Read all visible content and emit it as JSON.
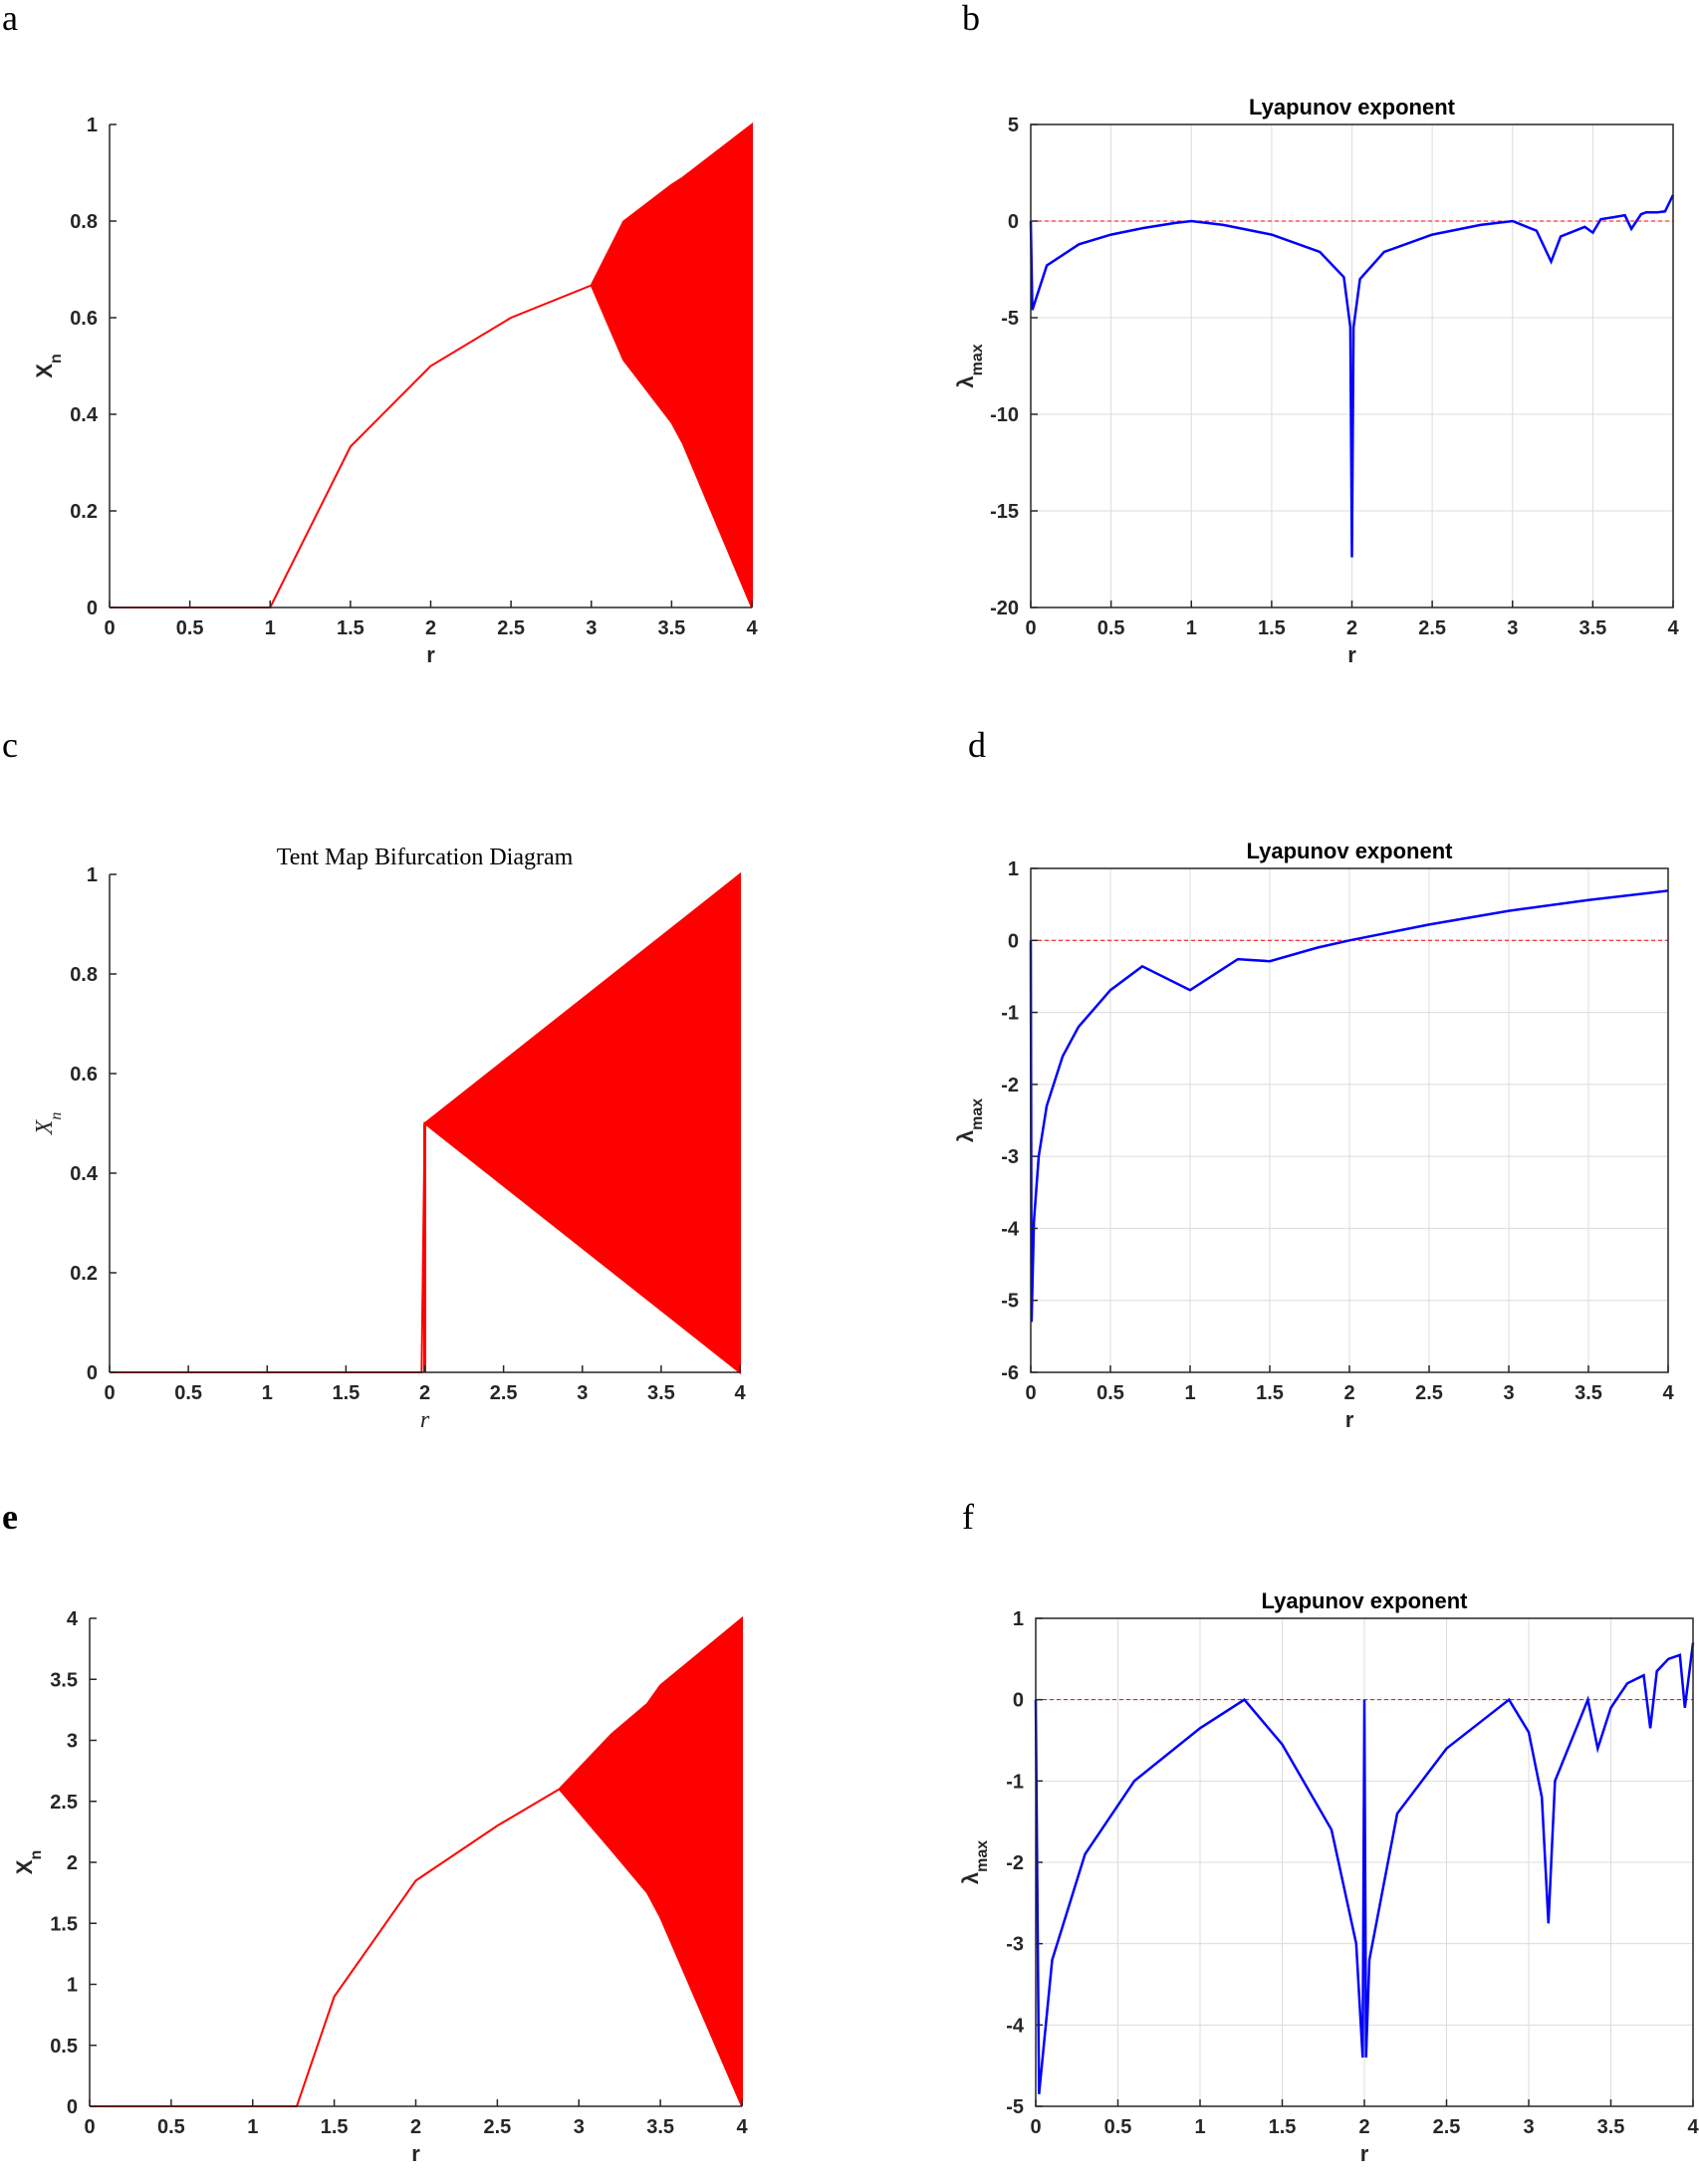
{
  "chart_data": [
    {
      "panel": "a",
      "type": "scatter",
      "kind": "bifurcation",
      "map": "logistic",
      "title": "",
      "xlabel": "r",
      "ylabel": "X",
      "ylabel_sub": "n",
      "xlim": [
        0,
        4
      ],
      "ylim": [
        0,
        1
      ],
      "xticks": [
        0,
        0.5,
        1,
        1.5,
        2,
        2.5,
        3,
        3.5,
        4
      ],
      "yticks": [
        0,
        0.2,
        0.4,
        0.6,
        0.8,
        1
      ],
      "xtick_labels": [
        "0",
        "0.5",
        "1",
        "1.5",
        "2",
        "2.5",
        "3",
        "3.5",
        "4"
      ],
      "ytick_labels": [
        "0",
        "0.2",
        "0.4",
        "0.6",
        "0.8",
        "1"
      ],
      "grid": false,
      "color": "#ff0000",
      "x": [
        0,
        0.5,
        1,
        1.5,
        2,
        2.5,
        3,
        3.2,
        3.5,
        3.57,
        4
      ],
      "y": [
        0,
        0,
        0,
        0.333,
        0.5,
        0.6,
        0.667,
        0.513,
        0.383,
        0.34,
        0
      ],
      "y_upper": [
        0,
        0,
        0,
        0.333,
        0.5,
        0.6,
        0.667,
        0.799,
        0.875,
        0.89,
        1
      ]
    },
    {
      "panel": "b",
      "type": "line",
      "title": "Lyapunov exponent",
      "xlabel": "r",
      "ylabel": "λ",
      "ylabel_sub": "max",
      "xlim": [
        0,
        4
      ],
      "ylim": [
        -20,
        5
      ],
      "xticks": [
        0,
        0.5,
        1,
        1.5,
        2,
        2.5,
        3,
        3.5,
        4
      ],
      "yticks": [
        -20,
        -15,
        -10,
        -5,
        0,
        5
      ],
      "xtick_labels": [
        "0",
        "0.5",
        "1",
        "1.5",
        "2",
        "2.5",
        "3",
        "3.5",
        "4"
      ],
      "ytick_labels": [
        "-20",
        "-15",
        "-10",
        "-5",
        "0",
        "5"
      ],
      "grid": true,
      "color": "#0000ff",
      "reference_line": 0,
      "x": [
        0,
        0.01,
        0.1,
        0.3,
        0.5,
        0.7,
        0.9,
        1.0,
        1.2,
        1.5,
        1.8,
        1.95,
        1.99,
        2.0,
        2.01,
        2.05,
        2.2,
        2.5,
        2.8,
        3.0,
        3.15,
        3.24,
        3.3,
        3.45,
        3.5,
        3.55,
        3.63,
        3.7,
        3.74,
        3.8,
        3.83,
        3.9,
        3.95,
        4.0
      ],
      "y": [
        0,
        -4.6,
        -2.3,
        -1.2,
        -0.7,
        -0.36,
        -0.1,
        0,
        -0.2,
        -0.7,
        -1.6,
        -2.9,
        -5.5,
        -17.4,
        -5.5,
        -3.0,
        -1.6,
        -0.7,
        -0.2,
        0,
        -0.5,
        -2.1,
        -0.8,
        -0.3,
        -0.6,
        0.1,
        0.2,
        0.3,
        -0.4,
        0.35,
        0.45,
        0.45,
        0.5,
        1.35
      ]
    },
    {
      "panel": "c",
      "type": "scatter",
      "kind": "bifurcation",
      "map": "tent",
      "title": "Tent Map Bifurcation Diagram",
      "xlabel": "r",
      "ylabel": "X",
      "ylabel_sub": "n",
      "xlim": [
        0,
        4
      ],
      "ylim": [
        0,
        1
      ],
      "xticks": [
        0,
        0.5,
        1,
        1.5,
        2,
        2.5,
        3,
        3.5,
        4
      ],
      "yticks": [
        0,
        0.2,
        0.4,
        0.6,
        0.8,
        1
      ],
      "xtick_labels": [
        "0",
        "0.5",
        "1",
        "1.5",
        "2",
        "2.5",
        "3",
        "3.5",
        "4"
      ],
      "ytick_labels": [
        "0",
        "0.2",
        "0.4",
        "0.6",
        "0.8",
        "1"
      ],
      "grid": false,
      "color": "#ff0000",
      "x": [
        0,
        1,
        1.98,
        2,
        2.5,
        3,
        3.5,
        4
      ],
      "y": [
        0,
        0,
        0,
        0.5,
        0.375,
        0.25,
        0.125,
        0
      ],
      "y_upper": [
        0,
        0,
        0,
        0.5,
        0.625,
        0.75,
        0.875,
        1
      ]
    },
    {
      "panel": "d",
      "type": "line",
      "title": "Lyapunov exponent",
      "xlabel": "r",
      "ylabel": "λ",
      "ylabel_sub": "max",
      "xlim": [
        0,
        4
      ],
      "ylim": [
        -6,
        1
      ],
      "xticks": [
        0,
        0.5,
        1,
        1.5,
        2,
        2.5,
        3,
        3.5,
        4
      ],
      "yticks": [
        -6,
        -5,
        -4,
        -3,
        -2,
        -1,
        0,
        1
      ],
      "xtick_labels": [
        "0",
        "0.5",
        "1",
        "1.5",
        "2",
        "2.5",
        "3",
        "3.5",
        "4"
      ],
      "ytick_labels": [
        "-6",
        "-5",
        "-4",
        "-3",
        "-2",
        "-1",
        "0",
        "1"
      ],
      "grid": true,
      "color": "#0000ff",
      "reference_line": 0,
      "x": [
        0,
        0.005,
        0.02,
        0.05,
        0.1,
        0.2,
        0.3,
        0.5,
        0.7,
        1.0,
        1.3,
        1.5,
        1.8,
        2.0,
        2.5,
        3.0,
        3.5,
        4.0
      ],
      "y": [
        0,
        -5.3,
        -3.9,
        -3.0,
        -2.3,
        -1.61,
        -1.2,
        -0.69,
        -0.36,
        -0.69,
        -0.26,
        -0.29,
        -0.1,
        0,
        0.22,
        0.41,
        0.56,
        0.69
      ]
    },
    {
      "panel": "e",
      "type": "scatter",
      "kind": "bifurcation",
      "title": "",
      "xlabel": "r",
      "ylabel": "X",
      "ylabel_sub": "n",
      "xlim": [
        0,
        4
      ],
      "ylim": [
        0,
        4
      ],
      "xticks": [
        0,
        0.5,
        1,
        1.5,
        2,
        2.5,
        3,
        3.5,
        4
      ],
      "yticks": [
        0,
        0.5,
        1,
        1.5,
        2,
        2.5,
        3,
        3.5,
        4
      ],
      "xtick_labels": [
        "0",
        "0.5",
        "1",
        "1.5",
        "2",
        "2.5",
        "3",
        "3.5",
        "4"
      ],
      "ytick_labels": [
        "0",
        "0.5",
        "1",
        "1.5",
        "2",
        "2.5",
        "3",
        "3.5",
        "4"
      ],
      "grid": false,
      "color": "#ff0000",
      "x": [
        0,
        0.5,
        1.0,
        1.27,
        1.5,
        2.0,
        2.5,
        2.88,
        3.2,
        3.42,
        3.5,
        4.0
      ],
      "y": [
        0,
        0,
        0,
        0,
        0.9,
        1.85,
        2.3,
        2.6,
        2.1,
        1.75,
        1.55,
        0
      ],
      "y_upper": [
        0,
        0,
        0,
        0,
        0.9,
        1.85,
        2.3,
        2.6,
        3.05,
        3.3,
        3.45,
        4.0
      ]
    },
    {
      "panel": "f",
      "type": "line",
      "title": "Lyapunov exponent",
      "xlabel": "r",
      "ylabel": "λ",
      "ylabel_sub": "max",
      "xlim": [
        0,
        4
      ],
      "ylim": [
        -5,
        1
      ],
      "xticks": [
        0,
        0.5,
        1,
        1.5,
        2,
        2.5,
        3,
        3.5,
        4
      ],
      "yticks": [
        -5,
        -4,
        -3,
        -2,
        -1,
        0,
        1
      ],
      "xtick_labels": [
        "0",
        "0.5",
        "1",
        "1.5",
        "2",
        "2.5",
        "3",
        "3.5",
        "4"
      ],
      "ytick_labels": [
        "-5",
        "-4",
        "-3",
        "-2",
        "-1",
        "0",
        "1"
      ],
      "grid": true,
      "color": "#0000ff",
      "reference_line": 0,
      "x": [
        0,
        0.02,
        0.1,
        0.3,
        0.6,
        1.0,
        1.27,
        1.5,
        1.8,
        1.95,
        1.99,
        2.0,
        2.01,
        2.03,
        2.2,
        2.5,
        2.88,
        3.0,
        3.08,
        3.12,
        3.16,
        3.3,
        3.36,
        3.42,
        3.5,
        3.6,
        3.7,
        3.74,
        3.78,
        3.85,
        3.92,
        3.95,
        4.0
      ],
      "y": [
        0,
        -4.85,
        -3.2,
        -1.9,
        -1.0,
        -0.35,
        0,
        -0.55,
        -1.6,
        -3.0,
        -4.4,
        0,
        -4.4,
        -3.2,
        -1.4,
        -0.6,
        0,
        -0.4,
        -1.2,
        -2.75,
        -1.0,
        -0.3,
        0,
        -0.6,
        -0.1,
        0.2,
        0.3,
        -0.35,
        0.35,
        0.5,
        0.55,
        -0.1,
        0.7
      ]
    }
  ],
  "panel_letters": [
    "a",
    "b",
    "c",
    "d",
    "e",
    "f"
  ]
}
